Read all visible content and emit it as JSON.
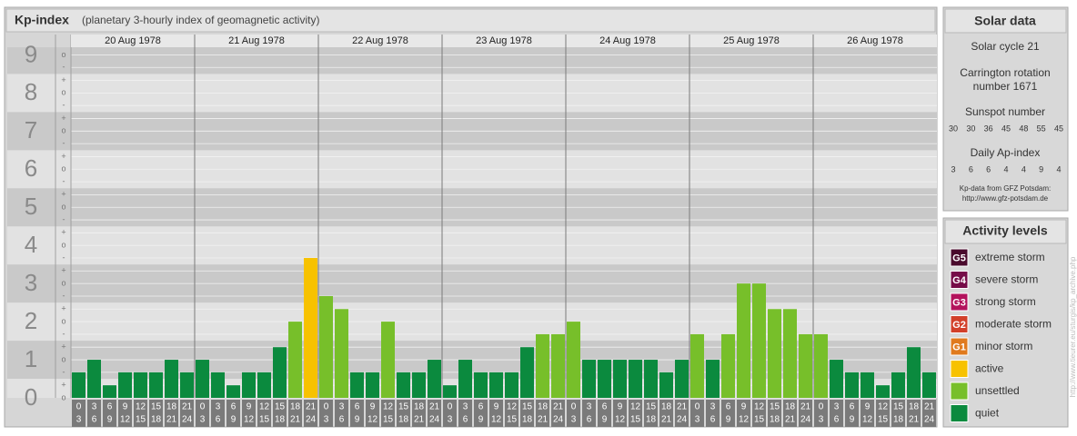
{
  "chart_data": {
    "type": "bar",
    "title": "Kp-index",
    "subtitle": "(planetary 3-hourly index of geomagnetic activity)",
    "ylim": [
      0,
      9.2
    ],
    "yticks": [
      0,
      1,
      2,
      3,
      4,
      5,
      6,
      7,
      8,
      9
    ],
    "subticks": [
      {
        "value": 9,
        "label": "o"
      },
      {
        "value": 8.67,
        "label": "-"
      },
      {
        "value": 8.33,
        "label": "+"
      },
      {
        "value": 8,
        "label": "o"
      },
      {
        "value": 7.67,
        "label": "-"
      },
      {
        "value": 7.33,
        "label": "+"
      },
      {
        "value": 7,
        "label": "o"
      },
      {
        "value": 6.67,
        "label": "-"
      },
      {
        "value": 6.33,
        "label": "+"
      },
      {
        "value": 6,
        "label": "o"
      },
      {
        "value": 5.67,
        "label": "-"
      },
      {
        "value": 5.33,
        "label": "+"
      },
      {
        "value": 5,
        "label": "o"
      },
      {
        "value": 4.67,
        "label": "-"
      },
      {
        "value": 4.33,
        "label": "+"
      },
      {
        "value": 4,
        "label": "o"
      },
      {
        "value": 3.67,
        "label": "-"
      },
      {
        "value": 3.33,
        "label": "+"
      },
      {
        "value": 3,
        "label": "o"
      },
      {
        "value": 2.67,
        "label": "-"
      },
      {
        "value": 2.33,
        "label": "+"
      },
      {
        "value": 2,
        "label": "o"
      },
      {
        "value": 1.67,
        "label": "-"
      },
      {
        "value": 1.33,
        "label": "+"
      },
      {
        "value": 1,
        "label": "o"
      },
      {
        "value": 0.67,
        "label": "-"
      },
      {
        "value": 0.33,
        "label": "+"
      },
      {
        "value": 0,
        "label": "o"
      }
    ],
    "hour_ranges": [
      [
        "0",
        "3"
      ],
      [
        "3",
        "6"
      ],
      [
        "6",
        "9"
      ],
      [
        "9",
        "12"
      ],
      [
        "12",
        "15"
      ],
      [
        "15",
        "18"
      ],
      [
        "18",
        "21"
      ],
      [
        "21",
        "24"
      ]
    ],
    "days": [
      {
        "date": "20 Aug 1978",
        "values": [
          0.67,
          1,
          0.33,
          0.67,
          0.67,
          0.67,
          1,
          0.67
        ],
        "colors": [
          "#0b8a3e",
          "#0b8a3e",
          "#0b8a3e",
          "#0b8a3e",
          "#0b8a3e",
          "#0b8a3e",
          "#0b8a3e",
          "#0b8a3e"
        ]
      },
      {
        "date": "21 Aug 1978",
        "values": [
          1,
          0.67,
          0.33,
          0.67,
          0.67,
          1.33,
          2,
          3.67
        ],
        "colors": [
          "#0b8a3e",
          "#0b8a3e",
          "#0b8a3e",
          "#0b8a3e",
          "#0b8a3e",
          "#0b8a3e",
          "#77bf2a",
          "#f7c200"
        ]
      },
      {
        "date": "22 Aug 1978",
        "values": [
          2.67,
          2.33,
          0.67,
          0.67,
          2,
          0.67,
          0.67,
          1
        ],
        "colors": [
          "#77bf2a",
          "#77bf2a",
          "#0b8a3e",
          "#0b8a3e",
          "#77bf2a",
          "#0b8a3e",
          "#0b8a3e",
          "#0b8a3e"
        ]
      },
      {
        "date": "23 Aug 1978",
        "values": [
          0.33,
          1,
          0.67,
          0.67,
          0.67,
          1.33,
          1.67,
          1.67
        ],
        "colors": [
          "#0b8a3e",
          "#0b8a3e",
          "#0b8a3e",
          "#0b8a3e",
          "#0b8a3e",
          "#0b8a3e",
          "#77bf2a",
          "#77bf2a"
        ]
      },
      {
        "date": "24 Aug 1978",
        "values": [
          2,
          1,
          1,
          1,
          1,
          1,
          0.67,
          1
        ],
        "colors": [
          "#77bf2a",
          "#0b8a3e",
          "#0b8a3e",
          "#0b8a3e",
          "#0b8a3e",
          "#0b8a3e",
          "#0b8a3e",
          "#0b8a3e"
        ]
      },
      {
        "date": "25 Aug 1978",
        "values": [
          1.67,
          1,
          1.67,
          3,
          3,
          2.33,
          2.33,
          1.67
        ],
        "colors": [
          "#77bf2a",
          "#0b8a3e",
          "#77bf2a",
          "#77bf2a",
          "#77bf2a",
          "#77bf2a",
          "#77bf2a",
          "#77bf2a"
        ]
      },
      {
        "date": "26 Aug 1978",
        "values": [
          1.67,
          1,
          0.67,
          0.67,
          0.33,
          0.67,
          1.33,
          0.67
        ],
        "colors": [
          "#77bf2a",
          "#0b8a3e",
          "#0b8a3e",
          "#0b8a3e",
          "#0b8a3e",
          "#0b8a3e",
          "#0b8a3e",
          "#0b8a3e"
        ]
      }
    ]
  },
  "solar": {
    "title": "Solar data",
    "cycle": "Solar cycle 21",
    "carrington": [
      "Carrington rotation",
      "number 1671"
    ],
    "sunspot_label": "Sunspot number",
    "sunspots": [
      30,
      30,
      36,
      45,
      48,
      55,
      45
    ],
    "ap_label": "Daily Ap-index",
    "ap": [
      3,
      6,
      6,
      4,
      4,
      9,
      4
    ],
    "source": [
      "Kp-data from GFZ Potsdam:",
      "http://www.gfz-potsdam.de"
    ]
  },
  "legend": {
    "title": "Activity levels",
    "items": [
      {
        "badge": "G5",
        "label": "extreme storm",
        "color": "#4a0a2c"
      },
      {
        "badge": "G4",
        "label": "severe storm",
        "color": "#760c48"
      },
      {
        "badge": "G3",
        "label": "strong storm",
        "color": "#b3125c"
      },
      {
        "badge": "G2",
        "label": "moderate storm",
        "color": "#d2402a"
      },
      {
        "badge": "G1",
        "label": "minor storm",
        "color": "#e07a1e"
      },
      {
        "label": "active",
        "color": "#f7c200"
      },
      {
        "label": "unsettled",
        "color": "#77bf2a"
      },
      {
        "label": "quiet",
        "color": "#0b8a3e"
      }
    ]
  },
  "watermark": "http://www.tieurer.eu/sturgis/kp_archive.php"
}
